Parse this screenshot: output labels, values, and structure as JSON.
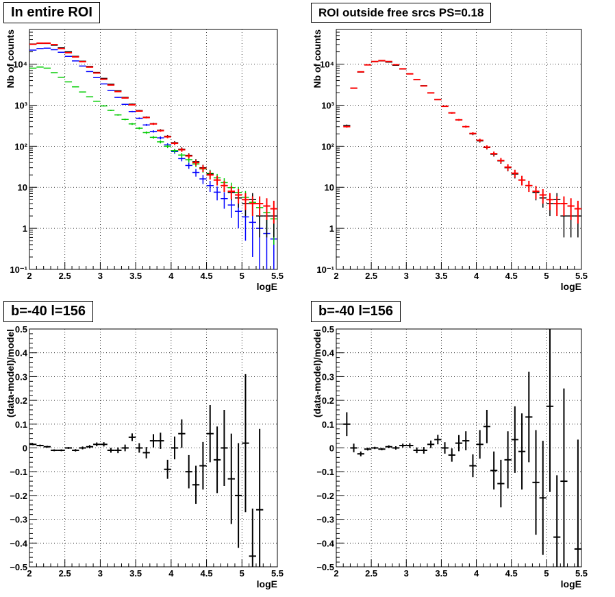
{
  "chart_data": [
    {
      "id": "top-left",
      "type": "scatter",
      "title": "In entire ROI",
      "xlabel": "logE",
      "ylabel": "Nb of counts",
      "xlim": [
        2,
        5.5
      ],
      "ylim": [
        0.1,
        70000
      ],
      "yscale": "log",
      "grid": true,
      "xticks": [
        2,
        2.5,
        3,
        3.5,
        4,
        4.5,
        5,
        5.5
      ],
      "xtick_labels": [
        "2",
        "2.5",
        "3",
        "3.5",
        "4",
        "4.5",
        "5",
        "5.5"
      ],
      "yticks": [
        0.1,
        1,
        10,
        100,
        1000,
        10000
      ],
      "ytick_labels": [
        "10⁻¹",
        "1",
        "10",
        "10²",
        "10³",
        "10⁴"
      ],
      "series": [
        {
          "color": "#0000ff",
          "x": [
            2.05,
            2.15,
            2.25,
            2.35,
            2.45,
            2.55,
            2.65,
            2.75,
            2.85,
            2.95,
            3.05,
            3.15,
            3.25,
            3.35,
            3.45,
            3.55,
            3.65,
            3.75,
            3.85,
            3.95,
            4.05,
            4.15,
            4.25,
            4.35,
            4.45,
            4.55,
            4.65,
            4.75,
            4.85,
            4.95,
            5.05,
            5.15,
            5.25,
            5.35,
            5.45
          ],
          "y": [
            22000,
            24000,
            24500,
            22500,
            19500,
            15500,
            12000,
            9000,
            6600,
            4700,
            3300,
            2300,
            1550,
            1050,
            700,
            480,
            330,
            230,
            160,
            108,
            74,
            50,
            34,
            23,
            16,
            11,
            7.6,
            5.3,
            3.7,
            2.6,
            1.9,
            1.4,
            1.0,
            0.75,
            0.55
          ],
          "yerr": [
            150,
            155,
            156,
            150,
            140,
            124,
            110,
            95,
            81,
            69,
            57,
            48,
            39,
            32,
            26,
            22,
            18,
            15,
            13,
            10,
            8.6,
            7.1,
            5.8,
            4.8,
            4.0,
            3.3,
            2.8,
            2.3,
            1.9,
            1.6,
            1.4,
            1.2,
            1.0,
            0.87,
            0.74
          ]
        },
        {
          "color": "#00cc00",
          "x": [
            2.05,
            2.15,
            2.25,
            2.35,
            2.45,
            2.55,
            2.65,
            2.75,
            2.85,
            2.95,
            3.05,
            3.15,
            3.25,
            3.35,
            3.45,
            3.55,
            3.65,
            3.75,
            3.85,
            3.95,
            4.05,
            4.15,
            4.25,
            4.35,
            4.45,
            4.55,
            4.65,
            4.75,
            4.85,
            4.95,
            5.05,
            5.15,
            5.25,
            5.35,
            5.45
          ],
          "y": [
            8000,
            8500,
            8000,
            6200,
            4800,
            3700,
            2800,
            2100,
            1600,
            1250,
            960,
            750,
            580,
            450,
            350,
            275,
            215,
            165,
            128,
            100,
            78,
            61,
            47,
            37,
            28,
            22,
            17,
            13,
            9.8,
            7.5,
            5.7,
            4.3,
            3.2,
            2.4,
            1.7
          ],
          "yerr": [
            89,
            92,
            89,
            79,
            69,
            61,
            53,
            46,
            40,
            35,
            31,
            27,
            24,
            21,
            19,
            17,
            15,
            13,
            11,
            10,
            8.8,
            7.8,
            6.9,
            6.1,
            5.3,
            4.7,
            4.1,
            3.6,
            3.1,
            2.7,
            2.4,
            2.1,
            1.8,
            1.5,
            1.3
          ]
        },
        {
          "color": "#000000",
          "x": [
            2.05,
            2.15,
            2.25,
            2.35,
            2.45,
            2.55,
            2.65,
            2.75,
            2.85,
            2.95,
            3.05,
            3.15,
            3.25,
            3.35,
            3.45,
            3.55,
            3.65,
            3.75,
            3.85,
            3.95,
            4.05,
            4.15,
            4.25,
            4.35,
            4.45,
            4.55,
            4.65,
            4.75,
            4.85,
            4.95,
            5.05,
            5.15,
            5.25,
            5.35,
            5.45
          ],
          "y": [
            31000,
            32000,
            32000,
            29000,
            25000,
            20000,
            15500,
            11800,
            8800,
            6300,
            4500,
            3250,
            2250,
            1550,
            1060,
            740,
            510,
            355,
            245,
            175,
            122,
            85,
            60,
            42,
            30,
            21,
            15,
            11,
            7.5,
            5.5,
            4,
            5,
            2,
            2,
            2
          ],
          "yerr": [
            176,
            179,
            179,
            170,
            158,
            141,
            124,
            109,
            94,
            79,
            67,
            57,
            47,
            39,
            33,
            27,
            23,
            19,
            16,
            13,
            11,
            9.2,
            7.7,
            6.5,
            5.5,
            4.6,
            3.9,
            3.3,
            2.7,
            2.3,
            2.0,
            2.2,
            1.4,
            1.4,
            1.4
          ]
        },
        {
          "color": "#ff0000",
          "x": [
            2.05,
            2.15,
            2.25,
            2.35,
            2.45,
            2.55,
            2.65,
            2.75,
            2.85,
            2.95,
            3.05,
            3.15,
            3.25,
            3.35,
            3.45,
            3.55,
            3.65,
            3.75,
            3.85,
            3.95,
            4.05,
            4.15,
            4.25,
            4.35,
            4.45,
            4.55,
            4.65,
            4.75,
            4.85,
            4.95,
            5.05,
            5.15,
            5.25,
            5.35,
            5.45
          ],
          "y": [
            30500,
            32500,
            32500,
            30000,
            24000,
            19000,
            15000,
            11500,
            8500,
            6100,
            4300,
            3100,
            2150,
            1500,
            1020,
            720,
            500,
            350,
            240,
            170,
            118,
            82,
            58,
            40,
            29,
            20,
            15,
            11,
            8,
            6.5,
            5,
            4,
            4,
            3.5,
            3.0
          ],
          "yerr": [
            175,
            180,
            180,
            173,
            155,
            138,
            122,
            107,
            92,
            78,
            66,
            56,
            46,
            39,
            32,
            27,
            22,
            19,
            15,
            13,
            11,
            9.1,
            7.6,
            6.3,
            5.4,
            4.5,
            3.9,
            3.3,
            2.8,
            2.5,
            2.2,
            2.0,
            2.0,
            1.9,
            1.7
          ]
        }
      ]
    },
    {
      "id": "top-right",
      "type": "scatter",
      "title": "ROI outside free srcs PS=0.18",
      "xlabel": "logE",
      "ylabel": "Nb of counts",
      "xlim": [
        2,
        5.5
      ],
      "ylim": [
        0.1,
        70000
      ],
      "yscale": "log",
      "grid": true,
      "xticks": [
        2,
        2.5,
        3,
        3.5,
        4,
        4.5,
        5,
        5.5
      ],
      "xtick_labels": [
        "2",
        "2.5",
        "3",
        "3.5",
        "4",
        "4.5",
        "5",
        "5.5"
      ],
      "yticks": [
        0.1,
        1,
        10,
        100,
        1000,
        10000
      ],
      "ytick_labels": [
        "10⁻¹",
        "1",
        "10",
        "10²",
        "10³",
        "10⁴"
      ],
      "series": [
        {
          "color": "#000000",
          "x": [
            2.15,
            2.25,
            2.35,
            2.45,
            2.55,
            2.65,
            2.75,
            2.85,
            2.95,
            3.05,
            3.15,
            3.25,
            3.35,
            3.45,
            3.55,
            3.65,
            3.75,
            3.85,
            3.95,
            4.05,
            4.15,
            4.25,
            4.35,
            4.45,
            4.55,
            4.65,
            4.75,
            4.85,
            4.95,
            5.05,
            5.15,
            5.25,
            5.35,
            5.45
          ],
          "y": [
            320,
            2600,
            6400,
            9600,
            11500,
            12000,
            11200,
            9400,
            7600,
            5800,
            4200,
            3000,
            2000,
            1380,
            950,
            650,
            440,
            300,
            200,
            135,
            93,
            64,
            44,
            30,
            21,
            15,
            11,
            7.5,
            5.5,
            4,
            5,
            2,
            2,
            2
          ],
          "yerr": [
            18,
            51,
            80,
            98,
            107,
            110,
            106,
            97,
            87,
            76,
            65,
            55,
            45,
            37,
            31,
            26,
            21,
            17,
            14,
            12,
            9.6,
            8.0,
            6.6,
            5.5,
            4.6,
            3.9,
            3.3,
            2.7,
            2.3,
            2.0,
            2.2,
            1.4,
            1.4,
            1.4
          ]
        },
        {
          "color": "#ff0000",
          "x": [
            2.15,
            2.25,
            2.35,
            2.45,
            2.55,
            2.65,
            2.75,
            2.85,
            2.95,
            3.05,
            3.15,
            3.25,
            3.35,
            3.45,
            3.55,
            3.65,
            3.75,
            3.85,
            3.95,
            4.05,
            4.15,
            4.25,
            4.35,
            4.45,
            4.55,
            4.65,
            4.75,
            4.85,
            4.95,
            5.05,
            5.15,
            5.25,
            5.35,
            5.45
          ],
          "y": [
            300,
            2600,
            6500,
            9600,
            11600,
            12200,
            11600,
            9700,
            7700,
            5800,
            4200,
            2950,
            2000,
            1370,
            940,
            650,
            440,
            300,
            205,
            140,
            95,
            66,
            45,
            31,
            22,
            15,
            11,
            8,
            6.5,
            5,
            4,
            4,
            3.5,
            3.0
          ],
          "yerr": [
            17,
            51,
            81,
            98,
            108,
            110,
            108,
            98,
            88,
            76,
            65,
            54,
            45,
            37,
            31,
            26,
            21,
            17,
            14,
            12,
            9.7,
            8.1,
            6.7,
            5.6,
            4.7,
            3.9,
            3.3,
            2.8,
            2.5,
            2.2,
            2.0,
            2.0,
            1.9,
            1.7
          ]
        }
      ]
    },
    {
      "id": "bottom-left",
      "type": "scatter",
      "title": "b=-40 l=156",
      "xlabel": "logE",
      "ylabel": "(data-model)/model",
      "xlim": [
        2,
        5.5
      ],
      "ylim": [
        -0.5,
        0.5
      ],
      "yscale": "linear",
      "grid": true,
      "xticks": [
        2,
        2.5,
        3,
        3.5,
        4,
        4.5,
        5,
        5.5
      ],
      "xtick_labels": [
        "2",
        "2.5",
        "3",
        "3.5",
        "4",
        "4.5",
        "5",
        "5.5"
      ],
      "yticks": [
        -0.5,
        -0.4,
        -0.3,
        -0.2,
        -0.1,
        0,
        0.1,
        0.2,
        0.3,
        0.4,
        0.5
      ],
      "ytick_labels": [
        "−0.5",
        "−0.4",
        "−0.3",
        "−0.2",
        "−0.1",
        "0",
        "0.1",
        "0.2",
        "0.3",
        "0.4",
        "0.5"
      ],
      "series": [
        {
          "color": "#000000",
          "x": [
            2.05,
            2.15,
            2.25,
            2.35,
            2.45,
            2.55,
            2.65,
            2.75,
            2.85,
            2.95,
            3.05,
            3.15,
            3.25,
            3.35,
            3.45,
            3.55,
            3.65,
            3.75,
            3.85,
            3.95,
            4.05,
            4.15,
            4.25,
            4.35,
            4.45,
            4.55,
            4.65,
            4.75,
            4.85,
            4.95,
            5.05,
            5.15,
            5.25
          ],
          "y": [
            0.015,
            0.01,
            0.005,
            -0.01,
            -0.01,
            0.0,
            -0.01,
            0.0,
            0.005,
            0.015,
            0.015,
            -0.01,
            -0.01,
            0.0,
            0.045,
            0.0,
            -0.02,
            0.03,
            0.03,
            -0.09,
            0.0,
            0.06,
            -0.1,
            -0.155,
            -0.075,
            0.06,
            -0.05,
            0.0,
            -0.13,
            -0.2,
            0.02,
            -0.455,
            -0.26
          ],
          "yerr": [
            0.004,
            0.004,
            0.004,
            0.004,
            0.004,
            0.004,
            0.005,
            0.006,
            0.007,
            0.008,
            0.009,
            0.01,
            0.012,
            0.014,
            0.016,
            0.02,
            0.024,
            0.028,
            0.034,
            0.04,
            0.048,
            0.06,
            0.07,
            0.08,
            0.1,
            0.12,
            0.14,
            0.16,
            0.19,
            0.22,
            0.29,
            0.2,
            0.34
          ]
        }
      ]
    },
    {
      "id": "bottom-right",
      "type": "scatter",
      "title": "b=-40 l=156",
      "xlabel": "logE",
      "ylabel": "(data-model)/model",
      "xlim": [
        2,
        5.5
      ],
      "ylim": [
        -0.5,
        0.5
      ],
      "yscale": "linear",
      "grid": true,
      "xticks": [
        2,
        2.5,
        3,
        3.5,
        4,
        4.5,
        5,
        5.5
      ],
      "xtick_labels": [
        "2",
        "2.5",
        "3",
        "3.5",
        "4",
        "4.5",
        "5",
        "5.5"
      ],
      "yticks": [
        -0.5,
        -0.4,
        -0.3,
        -0.2,
        -0.1,
        0,
        0.1,
        0.2,
        0.3,
        0.4,
        0.5
      ],
      "ytick_labels": [
        "−0.5",
        "−0.4",
        "−0.3",
        "−0.2",
        "−0.1",
        "0",
        "0.1",
        "0.2",
        "0.3",
        "0.4",
        "0.5"
      ],
      "series": [
        {
          "color": "#000000",
          "x": [
            2.15,
            2.25,
            2.35,
            2.45,
            2.55,
            2.65,
            2.75,
            2.85,
            2.95,
            3.05,
            3.15,
            3.25,
            3.35,
            3.45,
            3.55,
            3.65,
            3.75,
            3.85,
            3.95,
            4.05,
            4.15,
            4.25,
            4.35,
            4.45,
            4.55,
            4.65,
            4.75,
            4.85,
            4.95,
            5.05,
            5.15,
            5.25,
            5.45
          ],
          "y": [
            0.1,
            0.0,
            -0.025,
            -0.005,
            0.0,
            -0.005,
            0.005,
            0.0,
            0.01,
            0.01,
            -0.01,
            -0.01,
            0.015,
            0.035,
            0.0,
            -0.03,
            0.02,
            0.03,
            -0.075,
            0.015,
            0.09,
            -0.095,
            -0.15,
            -0.05,
            0.035,
            -0.015,
            0.13,
            -0.145,
            -0.21,
            0.175,
            -0.375,
            -0.14,
            -0.425
          ],
          "yerr": [
            0.05,
            0.018,
            0.01,
            0.006,
            0.005,
            0.005,
            0.006,
            0.007,
            0.008,
            0.01,
            0.012,
            0.014,
            0.016,
            0.02,
            0.024,
            0.028,
            0.034,
            0.04,
            0.048,
            0.06,
            0.07,
            0.08,
            0.1,
            0.12,
            0.14,
            0.16,
            0.19,
            0.22,
            0.24,
            0.36,
            0.26,
            0.39,
            0.46
          ]
        }
      ]
    }
  ]
}
